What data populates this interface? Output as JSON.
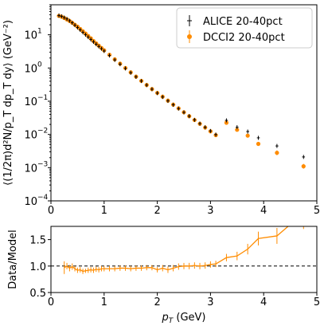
{
  "chart_data": [
    {
      "type": "scatter",
      "panel": "main",
      "ylabel": "⟨(1/2π)d²N/p_T dp_T dy⟩ (GeV⁻²)",
      "yscale": "log",
      "xlim": [
        0,
        5
      ],
      "ylim": [
        0.0001,
        80
      ],
      "x_ticks": [
        "0",
        "1",
        "2",
        "3",
        "4",
        "5"
      ],
      "y_ticks": [
        {
          "value": 0.0001,
          "label": "10",
          "exp": "−4"
        },
        {
          "value": 0.001,
          "label": "10",
          "exp": "−3"
        },
        {
          "value": 0.01,
          "label": "10",
          "exp": "−2"
        },
        {
          "value": 0.1,
          "label": "10",
          "exp": "−1"
        },
        {
          "value": 1,
          "label": "10",
          "exp": "0"
        },
        {
          "value": 10,
          "label": "10",
          "exp": "1"
        }
      ],
      "legend_position": "top-right",
      "series": [
        {
          "name": "ALICE 20-40pct",
          "color": "#000000",
          "marker": "plus",
          "x": [
            0.15,
            0.2,
            0.25,
            0.3,
            0.35,
            0.4,
            0.45,
            0.5,
            0.55,
            0.6,
            0.65,
            0.7,
            0.75,
            0.8,
            0.85,
            0.9,
            0.95,
            1.0,
            1.1,
            1.2,
            1.3,
            1.4,
            1.5,
            1.6,
            1.7,
            1.8,
            1.9,
            2.0,
            2.1,
            2.2,
            2.3,
            2.4,
            2.5,
            2.6,
            2.7,
            2.8,
            2.9,
            3.0,
            3.1,
            3.3,
            3.5,
            3.7,
            3.9,
            4.25,
            4.75
          ],
          "y": [
            38,
            36,
            33,
            30,
            26.5,
            23,
            19.5,
            16.5,
            14,
            11.8,
            10,
            8.5,
            7.2,
            6.1,
            5.2,
            4.45,
            3.8,
            3.25,
            2.38,
            1.75,
            1.3,
            0.97,
            0.72,
            0.54,
            0.405,
            0.305,
            0.23,
            0.175,
            0.134,
            0.102,
            0.078,
            0.06,
            0.046,
            0.0355,
            0.0275,
            0.0212,
            0.0164,
            0.0127,
            0.0099,
            0.0265,
            0.0165,
            0.0122,
            0.0079,
            0.0045,
            0.0021
          ]
        },
        {
          "name": "DCCI2 20-40pct",
          "color": "#ff8c00",
          "marker": "circle",
          "x": [
            0.15,
            0.2,
            0.25,
            0.3,
            0.35,
            0.4,
            0.45,
            0.5,
            0.55,
            0.6,
            0.65,
            0.7,
            0.75,
            0.8,
            0.85,
            0.9,
            0.95,
            1.0,
            1.1,
            1.2,
            1.3,
            1.4,
            1.5,
            1.6,
            1.7,
            1.8,
            1.9,
            2.0,
            2.1,
            2.2,
            2.3,
            2.4,
            2.5,
            2.6,
            2.7,
            2.8,
            2.9,
            3.0,
            3.1,
            3.3,
            3.5,
            3.7,
            3.9,
            4.25,
            4.75
          ],
          "y": [
            37,
            35,
            32,
            29,
            26,
            23,
            20,
            17.5,
            15,
            12.8,
            10.9,
            9.2,
            7.8,
            6.5,
            5.5,
            4.7,
            4.0,
            3.4,
            2.5,
            1.82,
            1.35,
            1.0,
            0.74,
            0.55,
            0.41,
            0.308,
            0.232,
            0.178,
            0.137,
            0.104,
            0.079,
            0.061,
            0.0465,
            0.0355,
            0.0272,
            0.0209,
            0.0161,
            0.0124,
            0.0095,
            0.0225,
            0.0138,
            0.0092,
            0.0052,
            0.0028,
            0.0011
          ]
        }
      ]
    },
    {
      "type": "scatter",
      "panel": "ratio",
      "xlabel": "p_T (GeV)",
      "ylabel": "Data/Model",
      "xlim": [
        0,
        5
      ],
      "ylim": [
        0.5,
        1.75
      ],
      "x_ticks": [
        "0",
        "1",
        "2",
        "3",
        "4",
        "5"
      ],
      "y_ticks": [
        "0.5",
        "1.0",
        "1.5"
      ],
      "reference_line": 1.0,
      "series": [
        {
          "name": "",
          "color": "#ff8c00",
          "marker": "line-with-errorbars",
          "x": [
            0.25,
            0.3,
            0.35,
            0.4,
            0.45,
            0.5,
            0.55,
            0.6,
            0.65,
            0.7,
            0.75,
            0.8,
            0.85,
            0.9,
            0.95,
            1.0,
            1.1,
            1.2,
            1.3,
            1.4,
            1.5,
            1.6,
            1.7,
            1.8,
            1.9,
            2.0,
            2.1,
            2.2,
            2.3,
            2.4,
            2.5,
            2.6,
            2.7,
            2.8,
            2.9,
            3.0,
            3.1,
            3.3,
            3.5,
            3.7,
            3.9,
            4.25,
            4.75
          ],
          "y": [
            0.97,
            1.0,
            0.96,
            0.99,
            0.95,
            0.92,
            0.93,
            0.9,
            0.91,
            0.92,
            0.93,
            0.92,
            0.94,
            0.93,
            0.95,
            0.95,
            0.95,
            0.95,
            0.96,
            0.96,
            0.95,
            0.96,
            0.96,
            0.97,
            0.97,
            0.93,
            0.96,
            0.93,
            0.96,
            0.99,
            1.0,
            1.0,
            1.01,
            1.0,
            1.01,
            1.03,
            1.04,
            1.16,
            1.19,
            1.32,
            1.52,
            1.57,
            2.0
          ],
          "err": [
            0.12,
            0.06,
            0.06,
            0.06,
            0.05,
            0.05,
            0.05,
            0.05,
            0.04,
            0.05,
            0.05,
            0.05,
            0.05,
            0.05,
            0.05,
            0.05,
            0.05,
            0.05,
            0.05,
            0.05,
            0.05,
            0.05,
            0.05,
            0.05,
            0.05,
            0.05,
            0.06,
            0.06,
            0.06,
            0.06,
            0.06,
            0.06,
            0.06,
            0.06,
            0.06,
            0.06,
            0.06,
            0.07,
            0.08,
            0.1,
            0.13,
            0.15,
            0.3
          ]
        }
      ]
    }
  ]
}
